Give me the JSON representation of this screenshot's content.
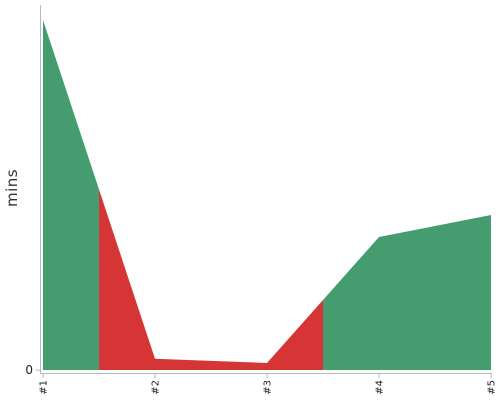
{
  "chart_data": {
    "type": "area",
    "title": "",
    "xlabel": "",
    "ylabel": "mins",
    "categories": [
      "#1",
      "#2",
      "#3",
      "#4",
      "#5"
    ],
    "values": [
      100,
      3.2,
      2.0,
      38,
      44.3
    ],
    "ylim": [
      0,
      100
    ],
    "y_ticks": [
      "0"
    ],
    "colors": {
      "up": "#459c6e",
      "down": "#d63535"
    },
    "segment_colors": [
      "down",
      "down",
      "up",
      "up"
    ],
    "grid": false,
    "legend": "none"
  }
}
